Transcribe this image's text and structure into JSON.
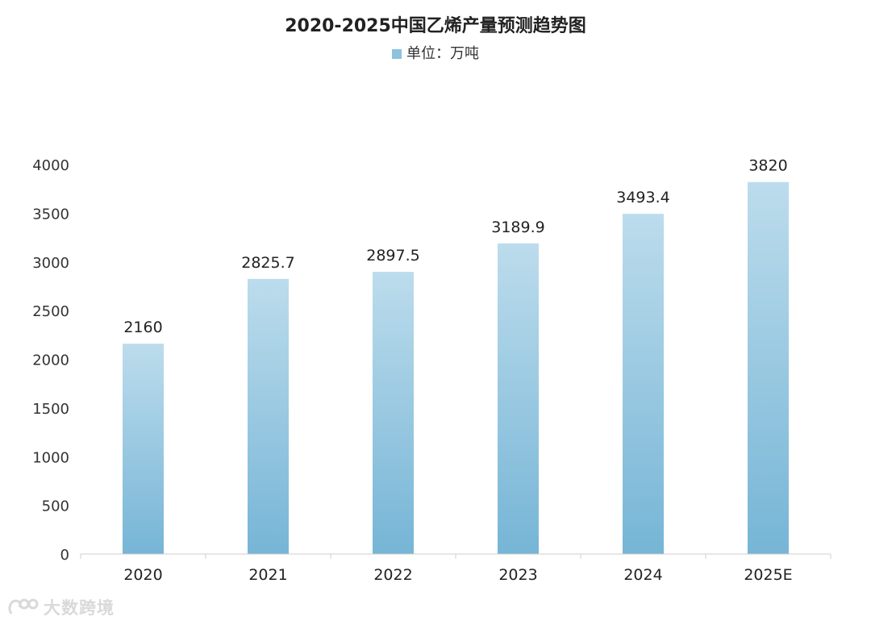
{
  "chart_data": {
    "type": "bar",
    "title": "2020-2025中国乙烯产量预测趋势图",
    "legend": "单位：万吨",
    "categories": [
      "2020",
      "2021",
      "2022",
      "2023",
      "2024",
      "2025E"
    ],
    "values": [
      2160,
      2825.7,
      2897.5,
      3189.9,
      3493.4,
      3820
    ],
    "value_labels": [
      "2160",
      "2825.7",
      "2897.5",
      "3189.9",
      "3493.4",
      "3820"
    ],
    "yticks": [
      0,
      500,
      1000,
      1500,
      2000,
      2500,
      3000,
      3500,
      4000
    ],
    "ylim": [
      0,
      4000
    ],
    "grid": false,
    "legend_placement": "top-center",
    "colors": {
      "bar_top": "#bcdcec",
      "bar_bottom": "#76b5d6",
      "legend_swatch": "#8cc3df",
      "axis": "#cfcfcf"
    }
  },
  "watermark": {
    "text": "大数跨境",
    "icon": "dashuju-logo-icon"
  }
}
